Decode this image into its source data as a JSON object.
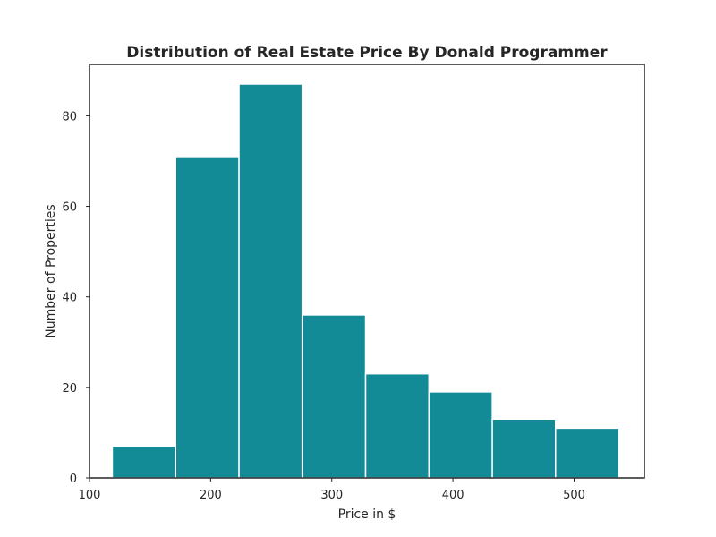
{
  "chart_data": {
    "type": "bar",
    "title": "Distribution of Real Estate Price By Donald Programmer",
    "xlabel": "Price in $",
    "ylabel": "Number of Properties",
    "bins": [
      {
        "start": 118.8,
        "end": 171.1,
        "count": 7
      },
      {
        "start": 171.1,
        "end": 223.4,
        "count": 71
      },
      {
        "start": 223.4,
        "end": 275.6,
        "count": 87
      },
      {
        "start": 275.6,
        "end": 327.9,
        "count": 36
      },
      {
        "start": 327.9,
        "end": 380.2,
        "count": 23
      },
      {
        "start": 380.2,
        "end": 432.5,
        "count": 19
      },
      {
        "start": 432.5,
        "end": 484.7,
        "count": 13
      },
      {
        "start": 484.7,
        "end": 537.0,
        "count": 11
      }
    ],
    "xlim": [
      100,
      558
    ],
    "ylim": [
      0,
      91.35
    ],
    "xticks": [
      100,
      200,
      300,
      400,
      500
    ],
    "xtick_labels": [
      "100",
      "200",
      "300",
      "400",
      "500"
    ],
    "yticks": [
      0,
      20,
      40,
      60,
      80
    ],
    "ytick_labels": [
      "0",
      "20",
      "40",
      "60",
      "80"
    ],
    "bar_color": "#138b97",
    "bar_edge_color": "#ffffff",
    "grid": false,
    "legend": "none"
  }
}
